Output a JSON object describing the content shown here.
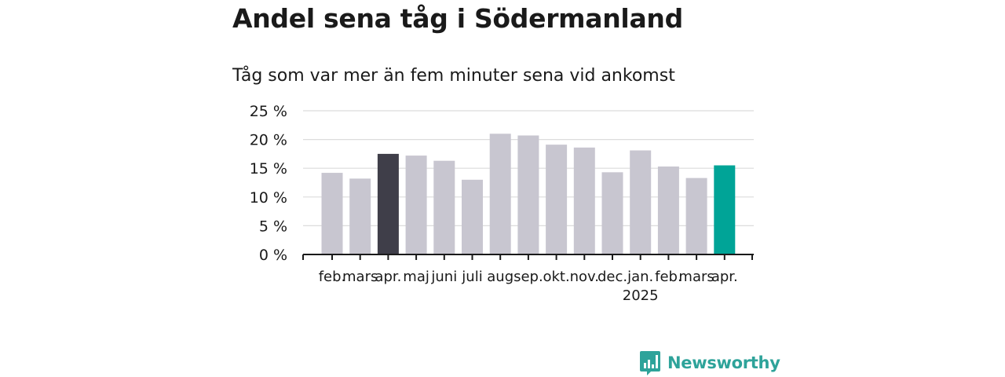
{
  "title": "Andel sena tåg i Södermanland",
  "subtitle": "Tåg som var mer än fem minuter sena vid ankomst",
  "brand": {
    "name": "Newsworthy",
    "icon": "bar-chart-speech-icon",
    "color": "#2ea39a"
  },
  "chart_data": {
    "type": "bar",
    "categories": [
      "feb.",
      "mars",
      "apr.",
      "maj",
      "juni",
      "juli",
      "aug",
      "sep.",
      "okt.",
      "nov.",
      "dec.",
      "jan.",
      "feb.",
      "mars",
      "apr."
    ],
    "year_label": "2025",
    "values": [
      14.2,
      13.2,
      17.5,
      17.2,
      16.3,
      13.0,
      21.0,
      20.7,
      19.1,
      18.6,
      14.3,
      18.1,
      15.3,
      13.3,
      15.5
    ],
    "bar_colors": [
      "#c8c6d0",
      "#c8c6d0",
      "#3f3e49",
      "#c8c6d0",
      "#c8c6d0",
      "#c8c6d0",
      "#c8c6d0",
      "#c8c6d0",
      "#c8c6d0",
      "#c8c6d0",
      "#c8c6d0",
      "#c8c6d0",
      "#c8c6d0",
      "#c8c6d0",
      "#00a497"
    ],
    "yticks": [
      "0 %",
      "5 %",
      "10 %",
      "15 %",
      "20 %",
      "25 %"
    ],
    "ylim": [
      0,
      25
    ],
    "grid": true,
    "xlabel": "",
    "ylabel": ""
  }
}
